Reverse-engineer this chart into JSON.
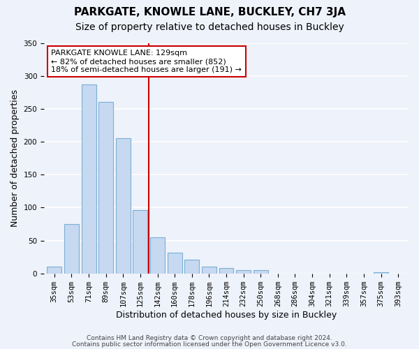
{
  "title": "PARKGATE, KNOWLE LANE, BUCKLEY, CH7 3JA",
  "subtitle": "Size of property relative to detached houses in Buckley",
  "xlabel": "Distribution of detached houses by size in Buckley",
  "ylabel": "Number of detached properties",
  "bin_labels": [
    "35sqm",
    "53sqm",
    "71sqm",
    "89sqm",
    "107sqm",
    "125sqm",
    "142sqm",
    "160sqm",
    "178sqm",
    "196sqm",
    "214sqm",
    "232sqm",
    "250sqm",
    "268sqm",
    "286sqm",
    "304sqm",
    "321sqm",
    "339sqm",
    "357sqm",
    "375sqm",
    "393sqm"
  ],
  "bar_values": [
    10,
    75,
    287,
    260,
    205,
    96,
    55,
    31,
    21,
    10,
    8,
    5,
    5,
    0,
    0,
    0,
    0,
    0,
    0,
    2,
    0
  ],
  "bar_color": "#c6d9f1",
  "bar_edge_color": "#7bafd4",
  "vline_x": 5.5,
  "vline_color": "#cc0000",
  "annotation_text": "PARKGATE KNOWLE LANE: 129sqm\n← 82% of detached houses are smaller (852)\n18% of semi-detached houses are larger (191) →",
  "annotation_box_color": "white",
  "annotation_box_edge": "#cc0000",
  "ylim": [
    0,
    350
  ],
  "yticks": [
    0,
    50,
    100,
    150,
    200,
    250,
    300,
    350
  ],
  "footer_line1": "Contains HM Land Registry data © Crown copyright and database right 2024.",
  "footer_line2": "Contains public sector information licensed under the Open Government Licence v3.0.",
  "background_color": "#eef2fa",
  "grid_color": "white",
  "title_fontsize": 11,
  "subtitle_fontsize": 10,
  "axis_label_fontsize": 9,
  "tick_fontsize": 7.5,
  "footer_fontsize": 6.5
}
